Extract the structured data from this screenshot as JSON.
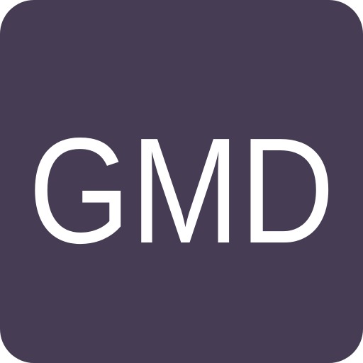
{
  "icon": {
    "name": "gmd-app-icon",
    "label": "GMD",
    "colors": {
      "background": "#463c54",
      "text": "#ffffff"
    }
  }
}
